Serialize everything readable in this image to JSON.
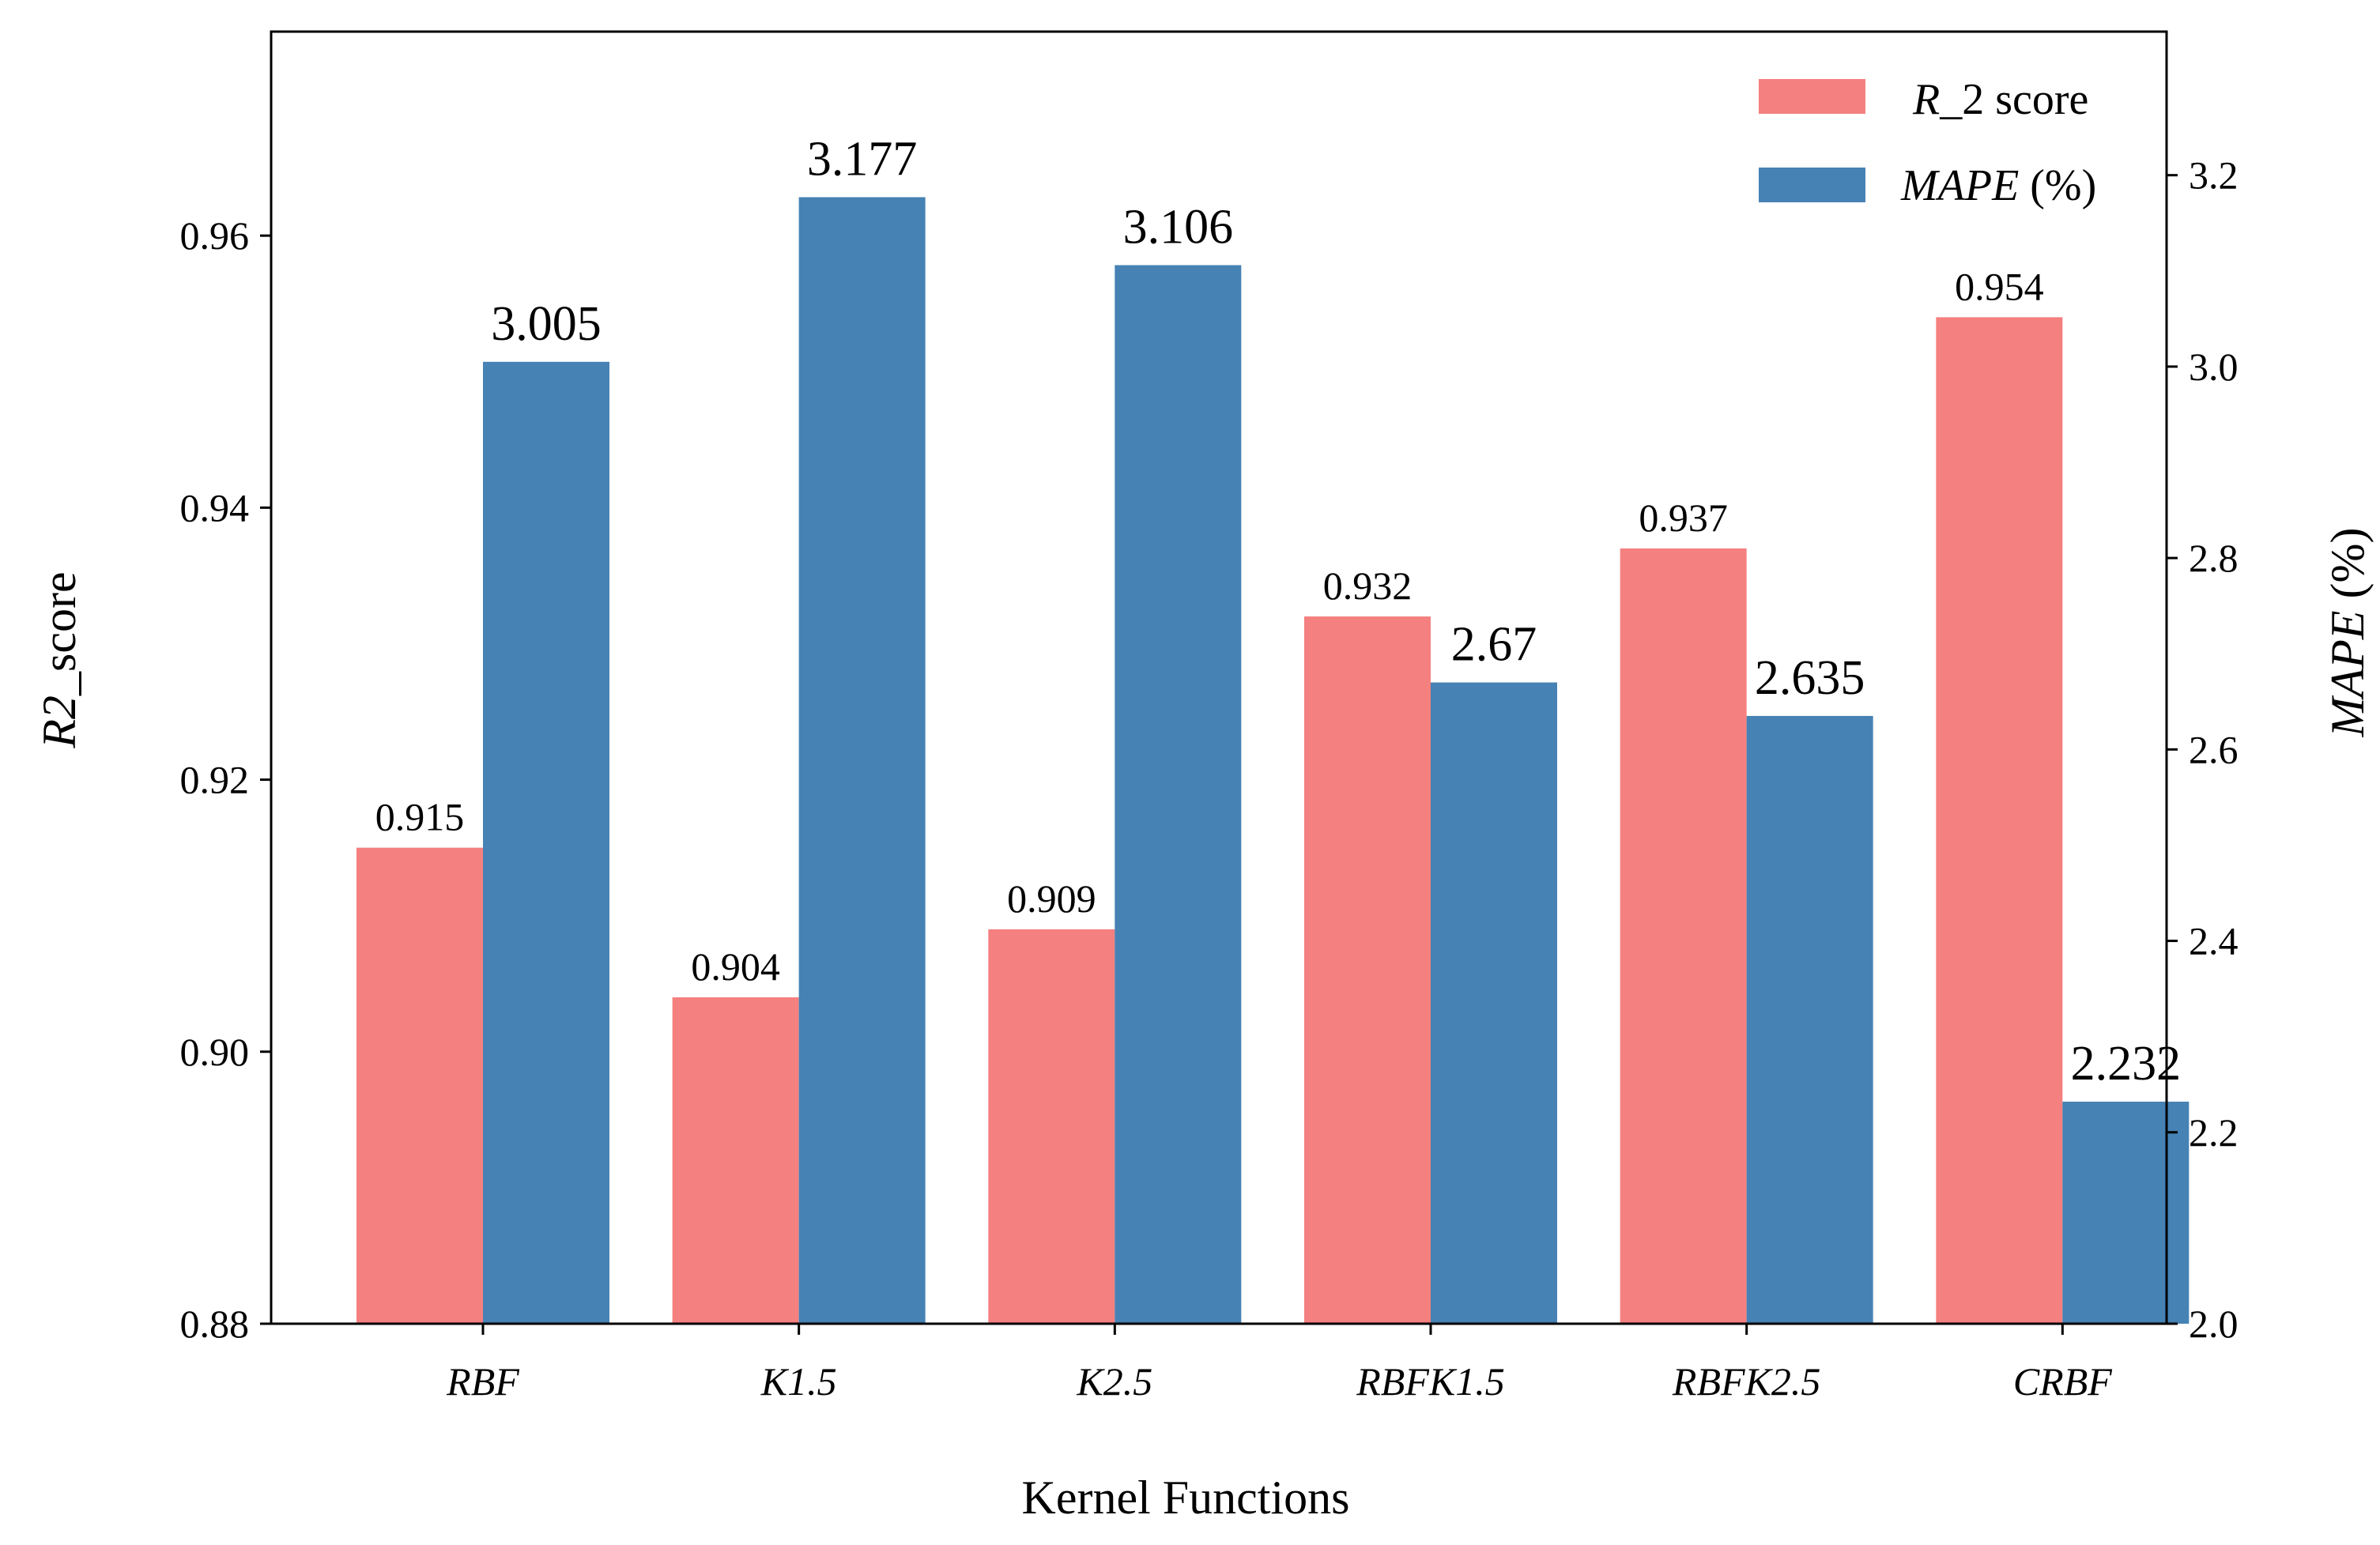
{
  "chart_data": {
    "type": "bar",
    "xlabel": "Kernel Functions",
    "categories": [
      "RBF",
      "K1.5",
      "K2.5",
      "RBFK1.5",
      "RBFK2.5",
      "CRBF"
    ],
    "series": [
      {
        "name": "R_2 score",
        "axis": "left",
        "color": "#F4807F",
        "values": [
          0.915,
          0.904,
          0.909,
          0.932,
          0.937,
          0.954
        ],
        "labels": [
          "0.915",
          "0.904",
          "0.909",
          "0.932",
          "0.937",
          "0.954"
        ]
      },
      {
        "name": "MAPE (%)",
        "axis": "right",
        "color": "#4682B4",
        "values": [
          3.005,
          3.177,
          3.106,
          2.67,
          2.635,
          2.232
        ],
        "labels": [
          "3.005",
          "3.177",
          "3.106",
          "2.67",
          "2.635",
          "2.232"
        ]
      }
    ],
    "left_axis": {
      "label_main": "R2",
      "label_rest": "_score",
      "ylim": [
        0.88,
        0.975
      ],
      "ticks": [
        0.88,
        0.9,
        0.92,
        0.94,
        0.96
      ],
      "tick_labels": [
        "0.88",
        "0.90",
        "0.92",
        "0.94",
        "0.96"
      ]
    },
    "right_axis": {
      "label_main": "MAPE",
      "label_rest": " (%)",
      "ylim": [
        2.0,
        3.35
      ],
      "ticks": [
        2.0,
        2.2,
        2.4,
        2.6,
        2.8,
        3.0,
        3.2
      ],
      "tick_labels": [
        "2.0",
        "2.2",
        "2.4",
        "2.6",
        "2.8",
        "3.0",
        "3.2"
      ]
    },
    "legend": {
      "position": "top-right",
      "items": [
        {
          "main": "R",
          "rest": "_2 score",
          "color": "#F4807F"
        },
        {
          "main": "MAPE",
          "rest": " (%)",
          "color": "#4682B4"
        }
      ]
    },
    "grid": false
  }
}
